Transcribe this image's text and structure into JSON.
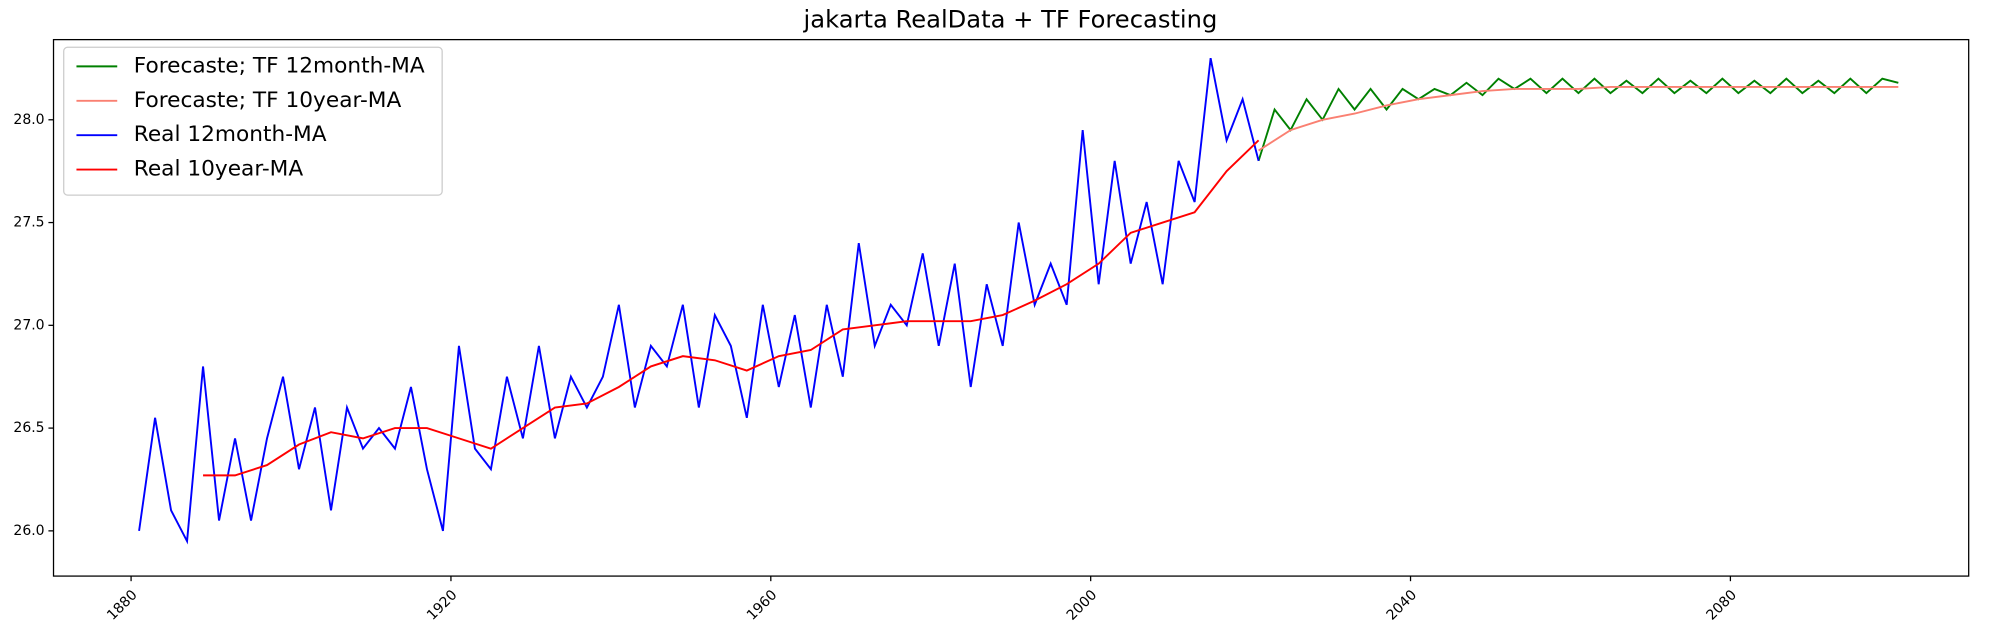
{
  "chart_data": {
    "type": "line",
    "title": "jakarta RealData + TF Forecasting",
    "xlim": [
      1870.3,
      2109.8
    ],
    "ylim": [
      25.78,
      28.39
    ],
    "xticks": [
      1880,
      1920,
      1960,
      2000,
      2040,
      2080
    ],
    "yticks": [
      {
        "value": 26,
        "label": "26.0"
      },
      26.5,
      {
        "value": 27,
        "label": "27.0"
      },
      27.5,
      {
        "value": 28,
        "label": "28.0"
      }
    ],
    "legend": "upper left",
    "series": [
      {
        "name": "Forecaste; TF 12month-MA",
        "color": "#008000",
        "x": [
          2021,
          2023,
          2025,
          2027,
          2029,
          2031,
          2033,
          2035,
          2037,
          2039,
          2041,
          2043,
          2045,
          2047,
          2049,
          2051,
          2053,
          2055,
          2057,
          2059,
          2061,
          2063,
          2065,
          2067,
          2069,
          2071,
          2073,
          2075,
          2077,
          2079,
          2081,
          2083,
          2085,
          2087,
          2089,
          2091,
          2093,
          2095,
          2097,
          2099,
          2101
        ],
        "values": [
          27.8,
          28.05,
          27.95,
          28.1,
          28.0,
          28.15,
          28.05,
          28.15,
          28.05,
          28.15,
          28.1,
          28.15,
          28.12,
          28.18,
          28.12,
          28.2,
          28.15,
          28.2,
          28.13,
          28.2,
          28.13,
          28.2,
          28.13,
          28.19,
          28.13,
          28.2,
          28.13,
          28.19,
          28.13,
          28.2,
          28.13,
          28.19,
          28.13,
          28.2,
          28.13,
          28.19,
          28.13,
          28.2,
          28.13,
          28.2,
          28.18
        ]
      },
      {
        "name": "Forecaste; TF 10year-MA",
        "color": "#fa8072",
        "x": [
          2021,
          2025,
          2029,
          2033,
          2037,
          2041,
          2045,
          2049,
          2053,
          2057,
          2061,
          2065,
          2069,
          2073,
          2077,
          2081,
          2085,
          2089,
          2093,
          2097,
          2101
        ],
        "values": [
          27.85,
          27.95,
          28.0,
          28.03,
          28.07,
          28.1,
          28.12,
          28.14,
          28.15,
          28.15,
          28.15,
          28.16,
          28.16,
          28.16,
          28.16,
          28.16,
          28.16,
          28.16,
          28.16,
          28.16,
          28.16
        ]
      },
      {
        "name": "Real 12month-MA",
        "color": "#0000ff",
        "x": [
          1881,
          1883,
          1885,
          1887,
          1889,
          1891,
          1893,
          1895,
          1897,
          1899,
          1901,
          1903,
          1905,
          1907,
          1909,
          1911,
          1913,
          1915,
          1917,
          1919,
          1921,
          1923,
          1925,
          1927,
          1929,
          1931,
          1933,
          1935,
          1937,
          1939,
          1941,
          1943,
          1945,
          1947,
          1949,
          1951,
          1953,
          1955,
          1957,
          1959,
          1961,
          1963,
          1965,
          1967,
          1969,
          1971,
          1973,
          1975,
          1977,
          1979,
          1981,
          1983,
          1985,
          1987,
          1989,
          1991,
          1993,
          1995,
          1997,
          1999,
          2001,
          2003,
          2005,
          2007,
          2009,
          2011,
          2013,
          2015,
          2017,
          2019,
          2021
        ],
        "values": [
          26.0,
          26.55,
          26.1,
          25.95,
          26.8,
          26.05,
          26.45,
          26.05,
          26.45,
          26.75,
          26.3,
          26.6,
          26.1,
          26.6,
          26.4,
          26.5,
          26.4,
          26.7,
          26.3,
          26.0,
          26.9,
          26.4,
          26.3,
          26.75,
          26.45,
          26.9,
          26.45,
          26.75,
          26.6,
          26.75,
          27.1,
          26.6,
          26.9,
          26.8,
          27.1,
          26.6,
          27.05,
          26.9,
          26.55,
          27.1,
          26.7,
          27.05,
          26.6,
          27.1,
          26.75,
          27.4,
          26.9,
          27.1,
          27.0,
          27.35,
          26.9,
          27.3,
          26.7,
          27.2,
          26.9,
          27.5,
          27.1,
          27.3,
          27.1,
          27.95,
          27.2,
          27.8,
          27.3,
          27.6,
          27.2,
          27.8,
          27.6,
          28.3,
          27.9,
          28.1,
          27.8
        ]
      },
      {
        "name": "Real 10year-MA",
        "color": "#ff0000",
        "x": [
          1889,
          1893,
          1897,
          1901,
          1905,
          1909,
          1913,
          1917,
          1921,
          1925,
          1929,
          1933,
          1937,
          1941,
          1945,
          1949,
          1953,
          1957,
          1961,
          1965,
          1969,
          1973,
          1977,
          1981,
          1985,
          1989,
          1993,
          1997,
          2001,
          2005,
          2009,
          2013,
          2017,
          2021
        ],
        "values": [
          26.27,
          26.27,
          26.32,
          26.42,
          26.48,
          26.45,
          26.5,
          26.5,
          26.45,
          26.4,
          26.5,
          26.6,
          26.62,
          26.7,
          26.8,
          26.85,
          26.83,
          26.78,
          26.85,
          26.88,
          26.98,
          27.0,
          27.02,
          27.02,
          27.02,
          27.05,
          27.12,
          27.2,
          27.3,
          27.45,
          27.5,
          27.55,
          27.75,
          27.9
        ]
      }
    ]
  }
}
